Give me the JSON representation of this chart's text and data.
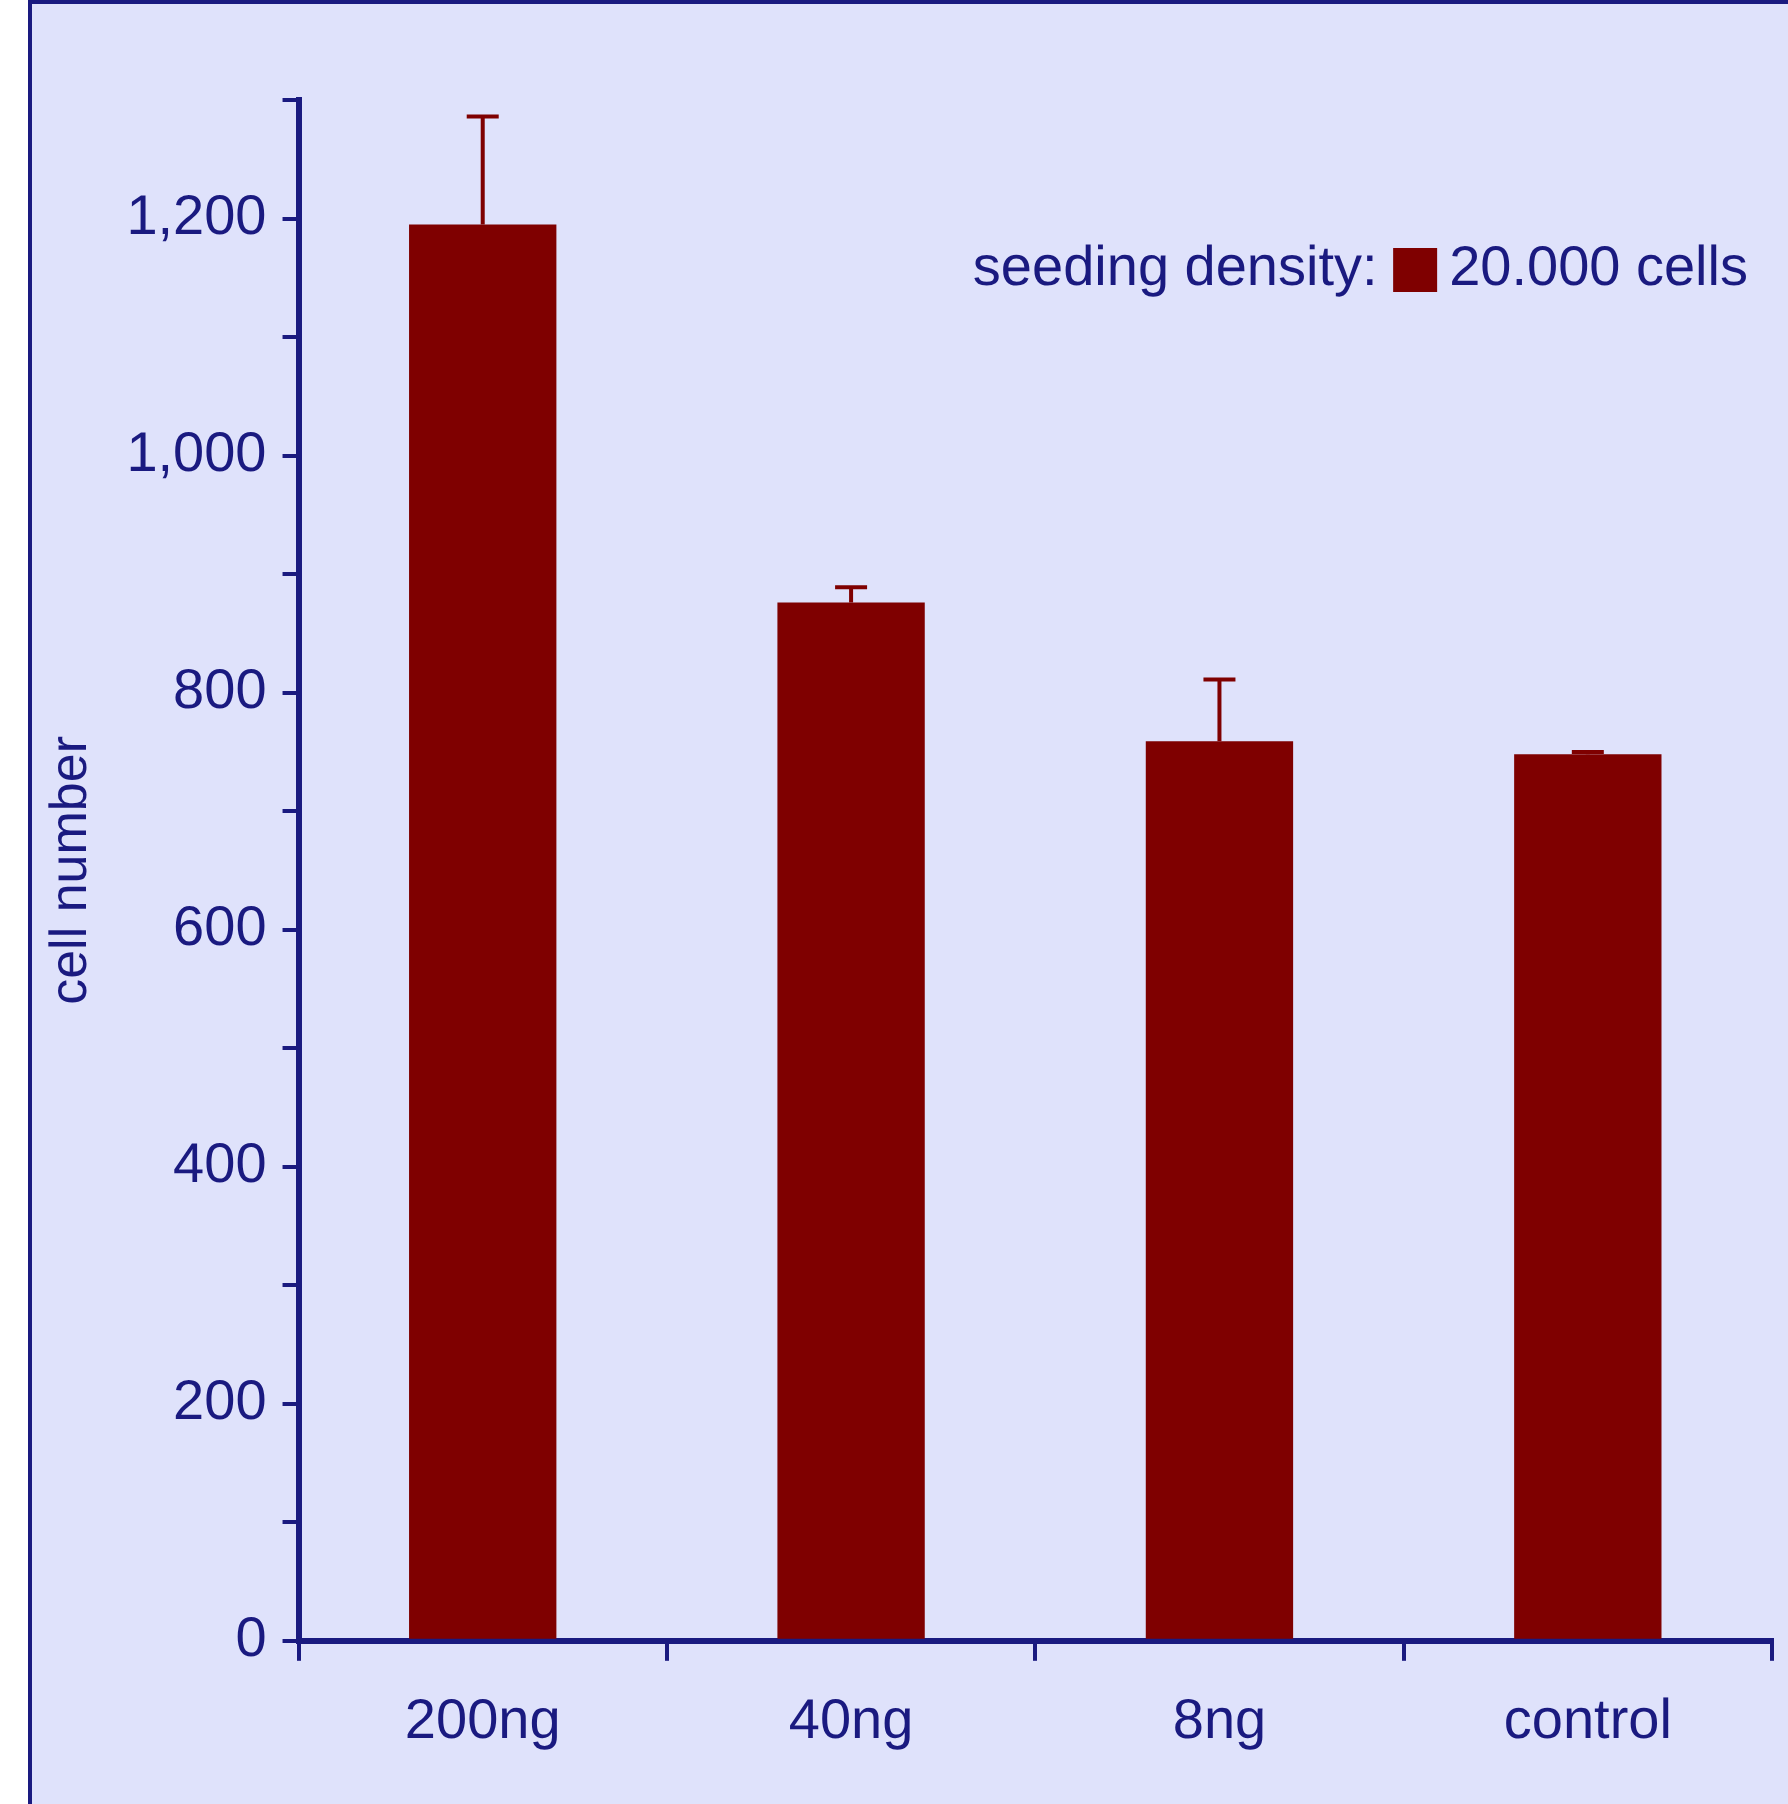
{
  "chart_data": {
    "type": "bar",
    "ylabel": "cell number",
    "legend_title": "seeding density:",
    "categories": [
      "200ng",
      "40ng",
      "8ng",
      "control"
    ],
    "series": [
      {
        "name": "20.000 cells",
        "color": "#7f0000",
        "values": [
          1195,
          876,
          759,
          748
        ],
        "errors": [
          [
            1195,
            1286
          ],
          [
            876,
            889
          ],
          [
            759,
            811
          ],
          [
            748,
            750
          ]
        ]
      }
    ],
    "ylim": [
      0,
      1300
    ],
    "yticks": [
      0,
      {
        "value": 100,
        "label": null
      },
      200,
      {
        "value": 300,
        "label": null
      },
      400,
      {
        "value": 500,
        "label": null
      },
      600,
      {
        "value": 700,
        "label": null
      },
      800,
      {
        "value": 900,
        "label": null
      },
      {
        "value": 1000,
        "label": "1,000"
      },
      {
        "value": 1100,
        "label": null
      },
      {
        "value": 1200,
        "label": "1,200"
      },
      {
        "value": 1300,
        "label": null
      }
    ],
    "grid": false,
    "legend": "top right"
  }
}
